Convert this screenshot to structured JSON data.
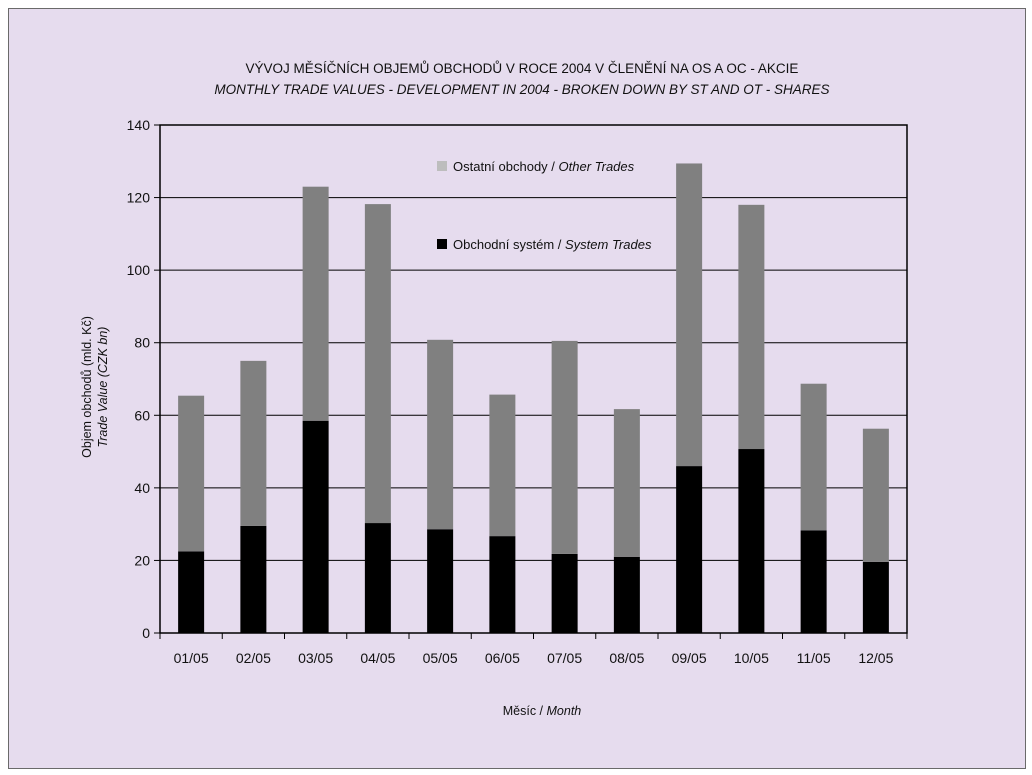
{
  "chart_data": {
    "type": "bar",
    "stacked": true,
    "title": "VÝVOJ MĚSÍČNÍCH OBJEMŮ OBCHODŮ V ROCE 2004 V ČLENĚNÍ NA OS A OC - AKCIE",
    "subtitle": "MONTHLY TRADE VALUES - DEVELOPMENT IN 2004 - BROKEN DOWN BY ST AND OT - SHARES",
    "xlabel": {
      "main": "Měsíc / ",
      "italic": "Month"
    },
    "ylabel": {
      "main": "Objem obchodů (mld. Kč)",
      "italic": "Trade Value (CZK bn)"
    },
    "categories": [
      "01/05",
      "02/05",
      "03/05",
      "04/05",
      "05/05",
      "06/05",
      "07/05",
      "08/05",
      "09/05",
      "10/05",
      "11/05",
      "12/05"
    ],
    "ylim": [
      0,
      140
    ],
    "yticks": [
      0,
      20,
      40,
      60,
      80,
      100,
      120,
      140
    ],
    "grid": true,
    "legend_position": "inside-top-center",
    "series": [
      {
        "key": "system",
        "name": "Obchodní systém",
        "name_en": "System Trades",
        "color": "#000000",
        "values": [
          22.5,
          29.5,
          58.5,
          30.3,
          28.6,
          26.7,
          21.8,
          21.0,
          46.0,
          50.7,
          28.3,
          19.6
        ]
      },
      {
        "key": "other",
        "name": "Ostatní obchody",
        "name_en": "Other Trades",
        "color": "#808080",
        "values": [
          42.9,
          45.5,
          64.5,
          87.9,
          52.2,
          39.0,
          58.7,
          40.7,
          83.4,
          67.3,
          40.4,
          36.7
        ]
      }
    ]
  }
}
